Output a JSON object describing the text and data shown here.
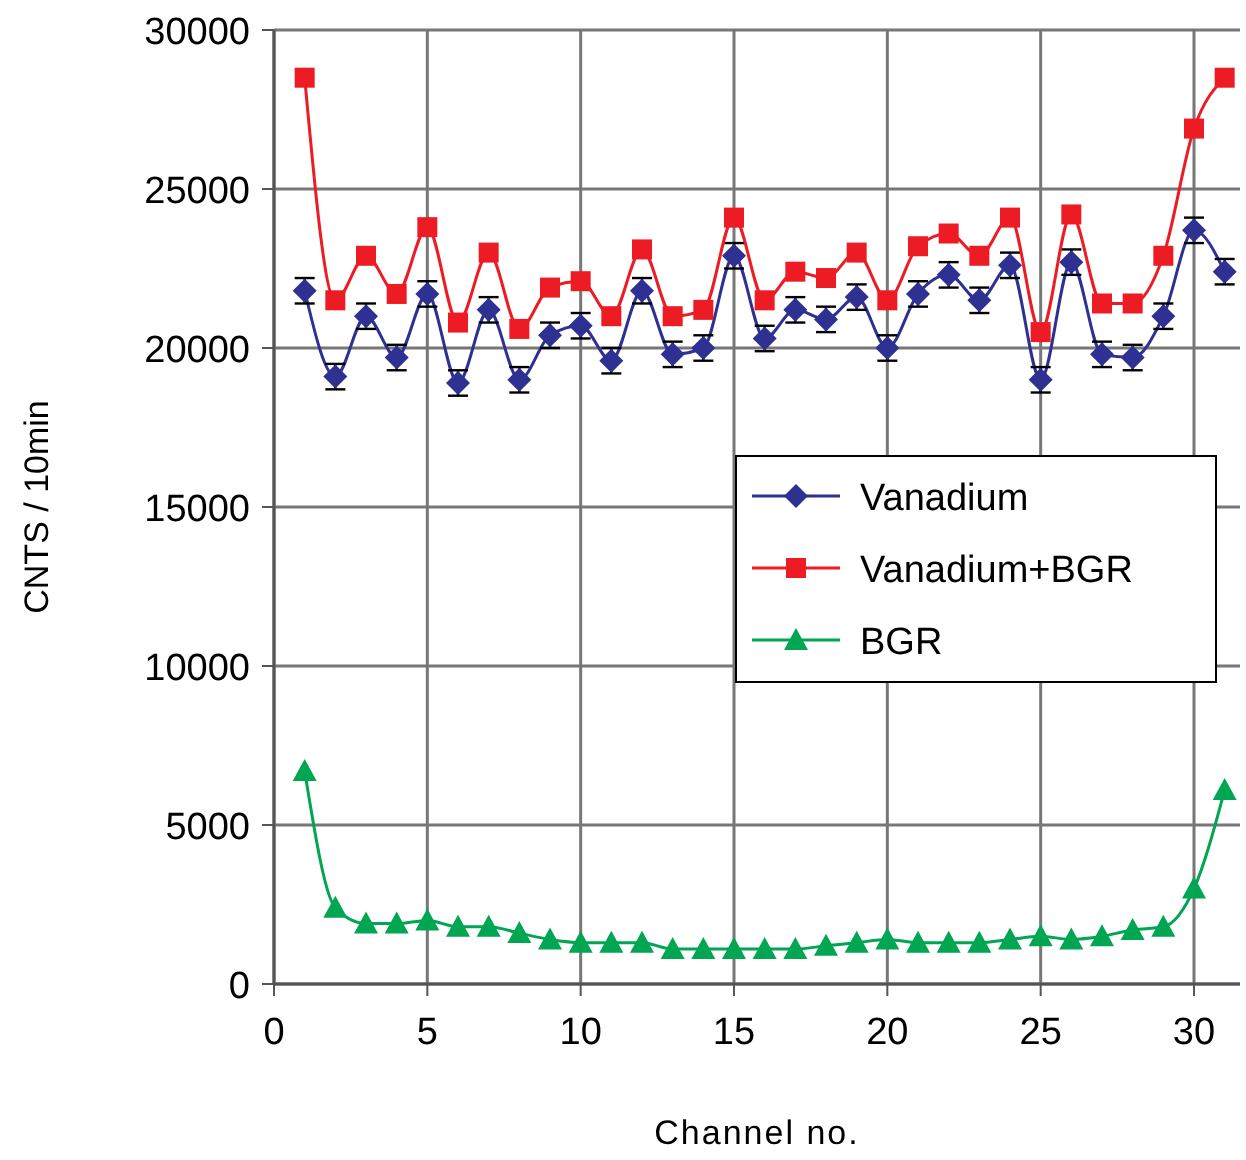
{
  "chart_data": {
    "type": "line",
    "xlabel": "Channel no.",
    "ylabel": "CNTS / 10min",
    "x": [
      1,
      2,
      3,
      4,
      5,
      6,
      7,
      8,
      9,
      10,
      11,
      12,
      13,
      14,
      15,
      16,
      17,
      18,
      19,
      20,
      21,
      22,
      23,
      24,
      25,
      26,
      27,
      28,
      29,
      30,
      31
    ],
    "series": [
      {
        "name": "Vanadium",
        "color": "#2e3192",
        "marker": "diamond",
        "values": [
          21800,
          19100,
          21000,
          19700,
          21700,
          18900,
          21200,
          19000,
          20400,
          20700,
          19600,
          21800,
          19800,
          20000,
          22900,
          20300,
          21200,
          20900,
          21600,
          20000,
          21700,
          22300,
          21500,
          22600,
          19000,
          22700,
          19800,
          19700,
          21000,
          23700,
          22400
        ],
        "errors": [
          400,
          400,
          400,
          400,
          400,
          400,
          400,
          400,
          400,
          400,
          400,
          400,
          400,
          400,
          400,
          400,
          400,
          400,
          400,
          400,
          400,
          400,
          400,
          400,
          400,
          400,
          400,
          400,
          400,
          400,
          400
        ]
      },
      {
        "name": "Vanadium+BGR",
        "color": "#ed1c24",
        "marker": "square",
        "values": [
          28500,
          21500,
          22900,
          21700,
          23800,
          20800,
          23000,
          20600,
          21900,
          22100,
          21000,
          23100,
          21000,
          21200,
          24100,
          21500,
          22400,
          22200,
          23000,
          21500,
          23200,
          23600,
          22900,
          24100,
          20500,
          24200,
          21400,
          21400,
          22900,
          26900,
          28500
        ]
      },
      {
        "name": "BGR",
        "color": "#00a651",
        "marker": "triangle",
        "values": [
          6700,
          2400,
          1900,
          1900,
          2000,
          1800,
          1800,
          1600,
          1400,
          1300,
          1300,
          1300,
          1100,
          1100,
          1100,
          1100,
          1100,
          1200,
          1300,
          1400,
          1300,
          1300,
          1300,
          1400,
          1500,
          1400,
          1500,
          1700,
          1800,
          3000,
          6100
        ]
      }
    ],
    "xlim": [
      0,
      31.5
    ],
    "xticks": [
      0,
      5,
      10,
      15,
      20,
      25,
      30
    ],
    "ylim": [
      0,
      30000
    ],
    "yticks": [
      0,
      5000,
      10000,
      15000,
      20000,
      25000,
      30000
    ],
    "grid": true,
    "legend": "right"
  }
}
